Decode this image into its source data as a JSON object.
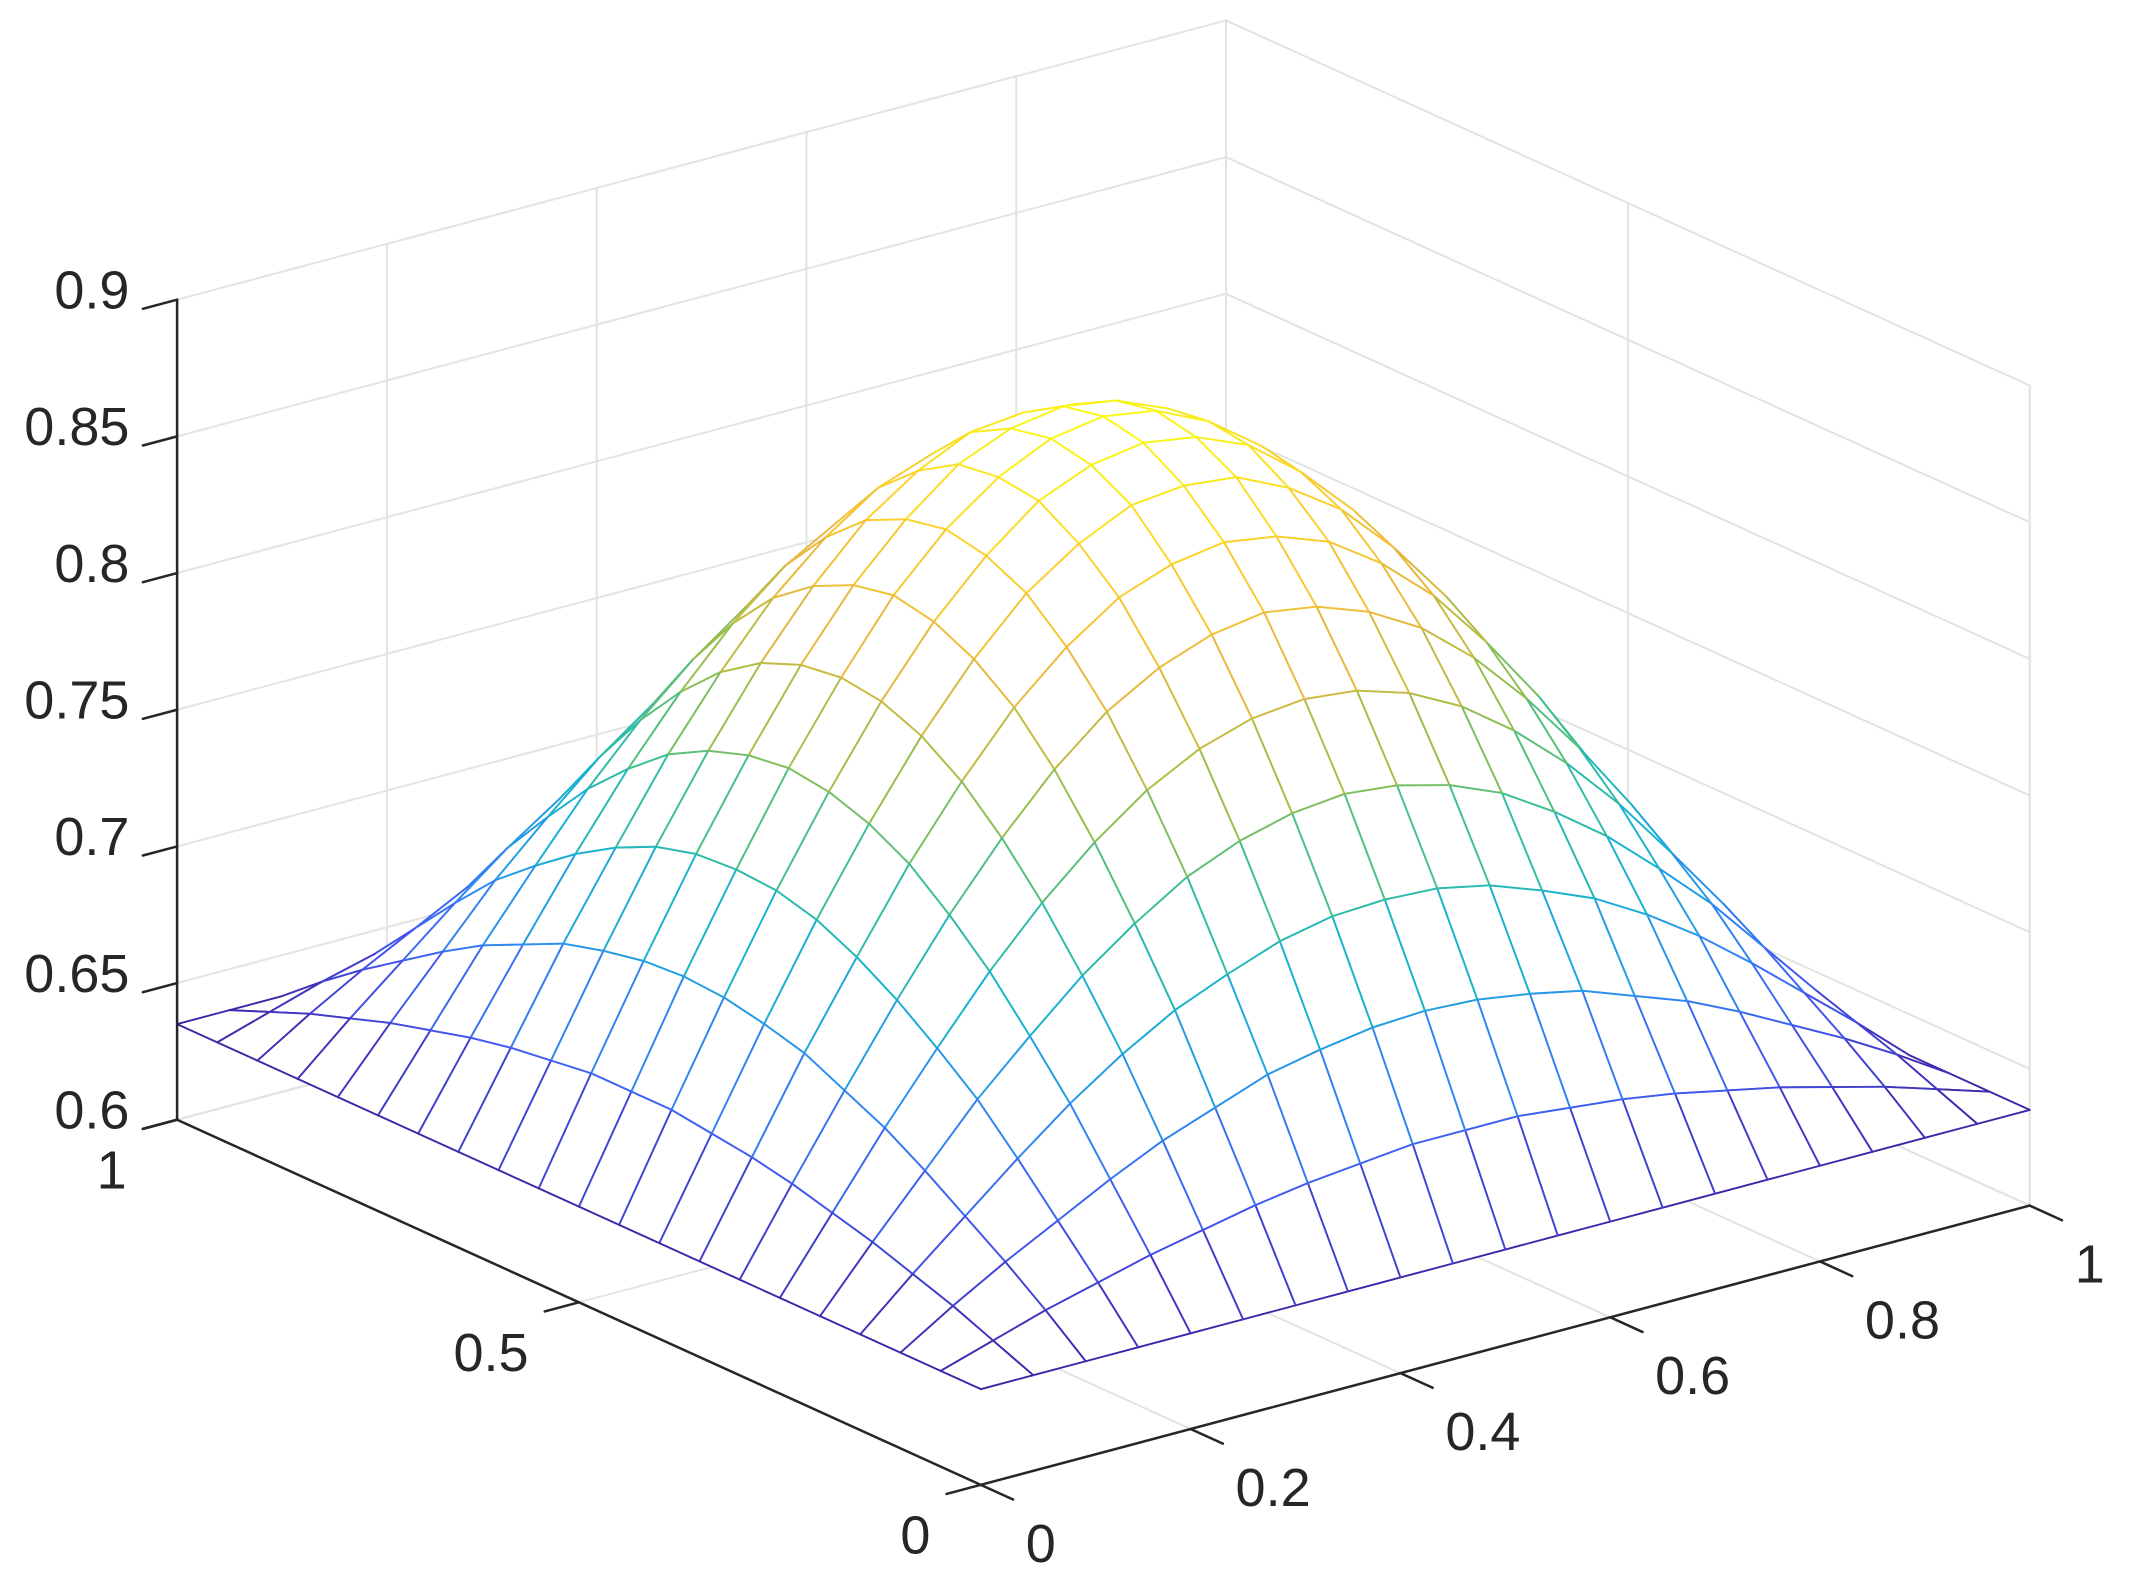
{
  "chart_data": {
    "type": "mesh",
    "x": [
      0,
      0.05,
      0.1,
      0.15,
      0.2,
      0.25,
      0.3,
      0.35,
      0.4,
      0.45,
      0.5,
      0.55,
      0.6,
      0.65,
      0.7,
      0.75,
      0.8,
      0.85,
      0.9,
      0.95,
      1
    ],
    "y": [
      0,
      0.05,
      0.1,
      0.15,
      0.2,
      0.25,
      0.3,
      0.35,
      0.4,
      0.45,
      0.5,
      0.55,
      0.6,
      0.65,
      0.7,
      0.75,
      0.8,
      0.85,
      0.9,
      0.95,
      1
    ],
    "z": [
      [
        0.635,
        0.635,
        0.635,
        0.635,
        0.635,
        0.635,
        0.635,
        0.635,
        0.635,
        0.635,
        0.635,
        0.635,
        0.635,
        0.635,
        0.635,
        0.635,
        0.635,
        0.635,
        0.635,
        0.635,
        0.635
      ],
      [
        0.635,
        0.641,
        0.647,
        0.652,
        0.657,
        0.661,
        0.665,
        0.668,
        0.67,
        0.672,
        0.672,
        0.672,
        0.67,
        0.668,
        0.665,
        0.661,
        0.657,
        0.652,
        0.647,
        0.641,
        0.635
      ],
      [
        0.635,
        0.647,
        0.658,
        0.668,
        0.678,
        0.687,
        0.694,
        0.701,
        0.705,
        0.708,
        0.709,
        0.708,
        0.705,
        0.701,
        0.694,
        0.687,
        0.678,
        0.668,
        0.658,
        0.647,
        0.635
      ],
      [
        0.635,
        0.652,
        0.668,
        0.684,
        0.699,
        0.712,
        0.723,
        0.731,
        0.738,
        0.742,
        0.743,
        0.742,
        0.738,
        0.731,
        0.723,
        0.712,
        0.699,
        0.684,
        0.668,
        0.652,
        0.635
      ],
      [
        0.635,
        0.657,
        0.678,
        0.699,
        0.717,
        0.734,
        0.748,
        0.76,
        0.768,
        0.773,
        0.775,
        0.773,
        0.768,
        0.76,
        0.748,
        0.734,
        0.717,
        0.699,
        0.678,
        0.657,
        0.635
      ],
      [
        0.635,
        0.661,
        0.687,
        0.711,
        0.734,
        0.754,
        0.771,
        0.785,
        0.795,
        0.801,
        0.803,
        0.801,
        0.795,
        0.785,
        0.771,
        0.754,
        0.734,
        0.711,
        0.687,
        0.661,
        0.635
      ],
      [
        0.635,
        0.665,
        0.694,
        0.722,
        0.748,
        0.771,
        0.791,
        0.807,
        0.818,
        0.825,
        0.828,
        0.825,
        0.818,
        0.807,
        0.791,
        0.771,
        0.748,
        0.722,
        0.694,
        0.665,
        0.635
      ],
      [
        0.635,
        0.668,
        0.701,
        0.731,
        0.76,
        0.785,
        0.807,
        0.824,
        0.837,
        0.844,
        0.847,
        0.844,
        0.837,
        0.824,
        0.807,
        0.785,
        0.76,
        0.731,
        0.701,
        0.668,
        0.635
      ],
      [
        0.635,
        0.67,
        0.705,
        0.738,
        0.768,
        0.795,
        0.818,
        0.837,
        0.85,
        0.859,
        0.861,
        0.859,
        0.85,
        0.837,
        0.818,
        0.795,
        0.768,
        0.738,
        0.705,
        0.67,
        0.635
      ],
      [
        0.635,
        0.672,
        0.708,
        0.742,
        0.773,
        0.801,
        0.825,
        0.844,
        0.859,
        0.867,
        0.87,
        0.867,
        0.859,
        0.844,
        0.825,
        0.801,
        0.773,
        0.742,
        0.708,
        0.672,
        0.635
      ],
      [
        0.635,
        0.672,
        0.709,
        0.743,
        0.775,
        0.803,
        0.828,
        0.847,
        0.861,
        0.87,
        0.873,
        0.87,
        0.861,
        0.847,
        0.828,
        0.803,
        0.775,
        0.743,
        0.709,
        0.672,
        0.635
      ],
      [
        0.635,
        0.672,
        0.708,
        0.742,
        0.773,
        0.801,
        0.825,
        0.844,
        0.859,
        0.867,
        0.87,
        0.867,
        0.859,
        0.844,
        0.825,
        0.801,
        0.773,
        0.742,
        0.708,
        0.672,
        0.635
      ],
      [
        0.635,
        0.67,
        0.705,
        0.738,
        0.768,
        0.795,
        0.818,
        0.837,
        0.85,
        0.859,
        0.861,
        0.859,
        0.85,
        0.837,
        0.818,
        0.795,
        0.768,
        0.738,
        0.705,
        0.67,
        0.635
      ],
      [
        0.635,
        0.668,
        0.701,
        0.731,
        0.76,
        0.785,
        0.807,
        0.824,
        0.837,
        0.844,
        0.847,
        0.844,
        0.837,
        0.824,
        0.807,
        0.785,
        0.76,
        0.731,
        0.701,
        0.668,
        0.635
      ],
      [
        0.635,
        0.665,
        0.694,
        0.722,
        0.748,
        0.771,
        0.791,
        0.807,
        0.818,
        0.825,
        0.828,
        0.825,
        0.818,
        0.807,
        0.791,
        0.771,
        0.748,
        0.722,
        0.694,
        0.665,
        0.635
      ],
      [
        0.635,
        0.661,
        0.687,
        0.711,
        0.734,
        0.754,
        0.771,
        0.785,
        0.795,
        0.801,
        0.803,
        0.801,
        0.795,
        0.785,
        0.771,
        0.754,
        0.734,
        0.711,
        0.687,
        0.661,
        0.635
      ],
      [
        0.635,
        0.657,
        0.678,
        0.699,
        0.717,
        0.734,
        0.748,
        0.76,
        0.768,
        0.773,
        0.775,
        0.773,
        0.768,
        0.76,
        0.748,
        0.734,
        0.717,
        0.699,
        0.678,
        0.657,
        0.635
      ],
      [
        0.635,
        0.652,
        0.668,
        0.684,
        0.699,
        0.712,
        0.723,
        0.731,
        0.738,
        0.742,
        0.743,
        0.742,
        0.738,
        0.731,
        0.723,
        0.712,
        0.699,
        0.684,
        0.668,
        0.652,
        0.635
      ],
      [
        0.635,
        0.647,
        0.658,
        0.668,
        0.678,
        0.687,
        0.694,
        0.701,
        0.705,
        0.708,
        0.709,
        0.708,
        0.705,
        0.701,
        0.694,
        0.687,
        0.678,
        0.668,
        0.658,
        0.647,
        0.635
      ],
      [
        0.635,
        0.641,
        0.647,
        0.652,
        0.657,
        0.661,
        0.665,
        0.668,
        0.67,
        0.672,
        0.672,
        0.672,
        0.67,
        0.668,
        0.665,
        0.661,
        0.657,
        0.652,
        0.647,
        0.641,
        0.635
      ],
      [
        0.635,
        0.635,
        0.635,
        0.635,
        0.635,
        0.635,
        0.635,
        0.635,
        0.635,
        0.635,
        0.635,
        0.635,
        0.635,
        0.635,
        0.635,
        0.635,
        0.635,
        0.635,
        0.635,
        0.635,
        0.635
      ]
    ],
    "xlim": [
      0,
      1
    ],
    "ylim": [
      0,
      1
    ],
    "zlim": [
      0.6,
      0.9
    ],
    "xticks": [
      0,
      0.2,
      0.4,
      0.6,
      0.8,
      1
    ],
    "yticks": [
      0,
      0.5,
      1
    ],
    "zticks": [
      0.6,
      0.65,
      0.7,
      0.75,
      0.8,
      0.85,
      0.9
    ],
    "grid": true,
    "colormap": [
      "#3e26a8",
      "#4358f0",
      "#2d8cf2",
      "#17b3d0",
      "#3dc08f",
      "#a1be47",
      "#e9b83d",
      "#fcd02d",
      "#f9fb15"
    ]
  }
}
